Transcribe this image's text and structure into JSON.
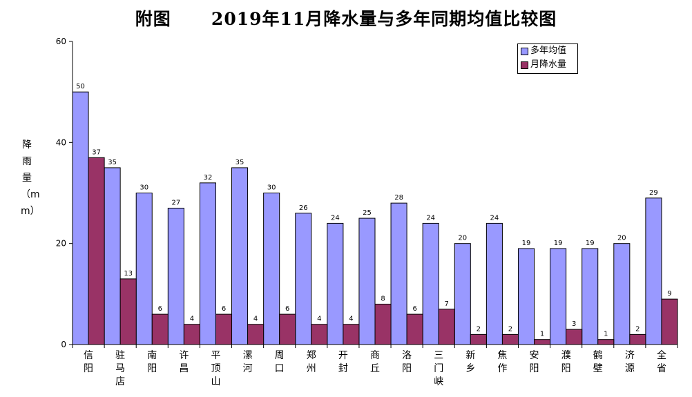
{
  "chart_data": {
    "type": "bar",
    "title": "附图      2019年11月降水量与多年同期均值比较图",
    "xlabel": "",
    "ylabel": "降雨量（mm）",
    "ylim": [
      0,
      60
    ],
    "yticks": [
      0,
      20,
      40,
      60
    ],
    "grid": false,
    "legend_position": "top-right",
    "categories": [
      "信阳",
      "驻马店",
      "南阳",
      "许昌",
      "平顶山",
      "漯河",
      "周口",
      "郑州",
      "开封",
      "商丘",
      "洛阳",
      "三门峡",
      "新乡",
      "焦作",
      "安阳",
      "濮阳",
      "鹤壁",
      "济源",
      "全省"
    ],
    "series": [
      {
        "name": "多年均值",
        "color": "#9999FF",
        "values": [
          50,
          35,
          30,
          27,
          32,
          35,
          30,
          26,
          24,
          25,
          28,
          24,
          20,
          24,
          19,
          19,
          19,
          20,
          29
        ]
      },
      {
        "name": "月降水量",
        "color": "#993366",
        "values": [
          37,
          13,
          6,
          4,
          6,
          4,
          6,
          4,
          4,
          8,
          6,
          7,
          2,
          2,
          1,
          3,
          1,
          2,
          9
        ]
      }
    ]
  }
}
